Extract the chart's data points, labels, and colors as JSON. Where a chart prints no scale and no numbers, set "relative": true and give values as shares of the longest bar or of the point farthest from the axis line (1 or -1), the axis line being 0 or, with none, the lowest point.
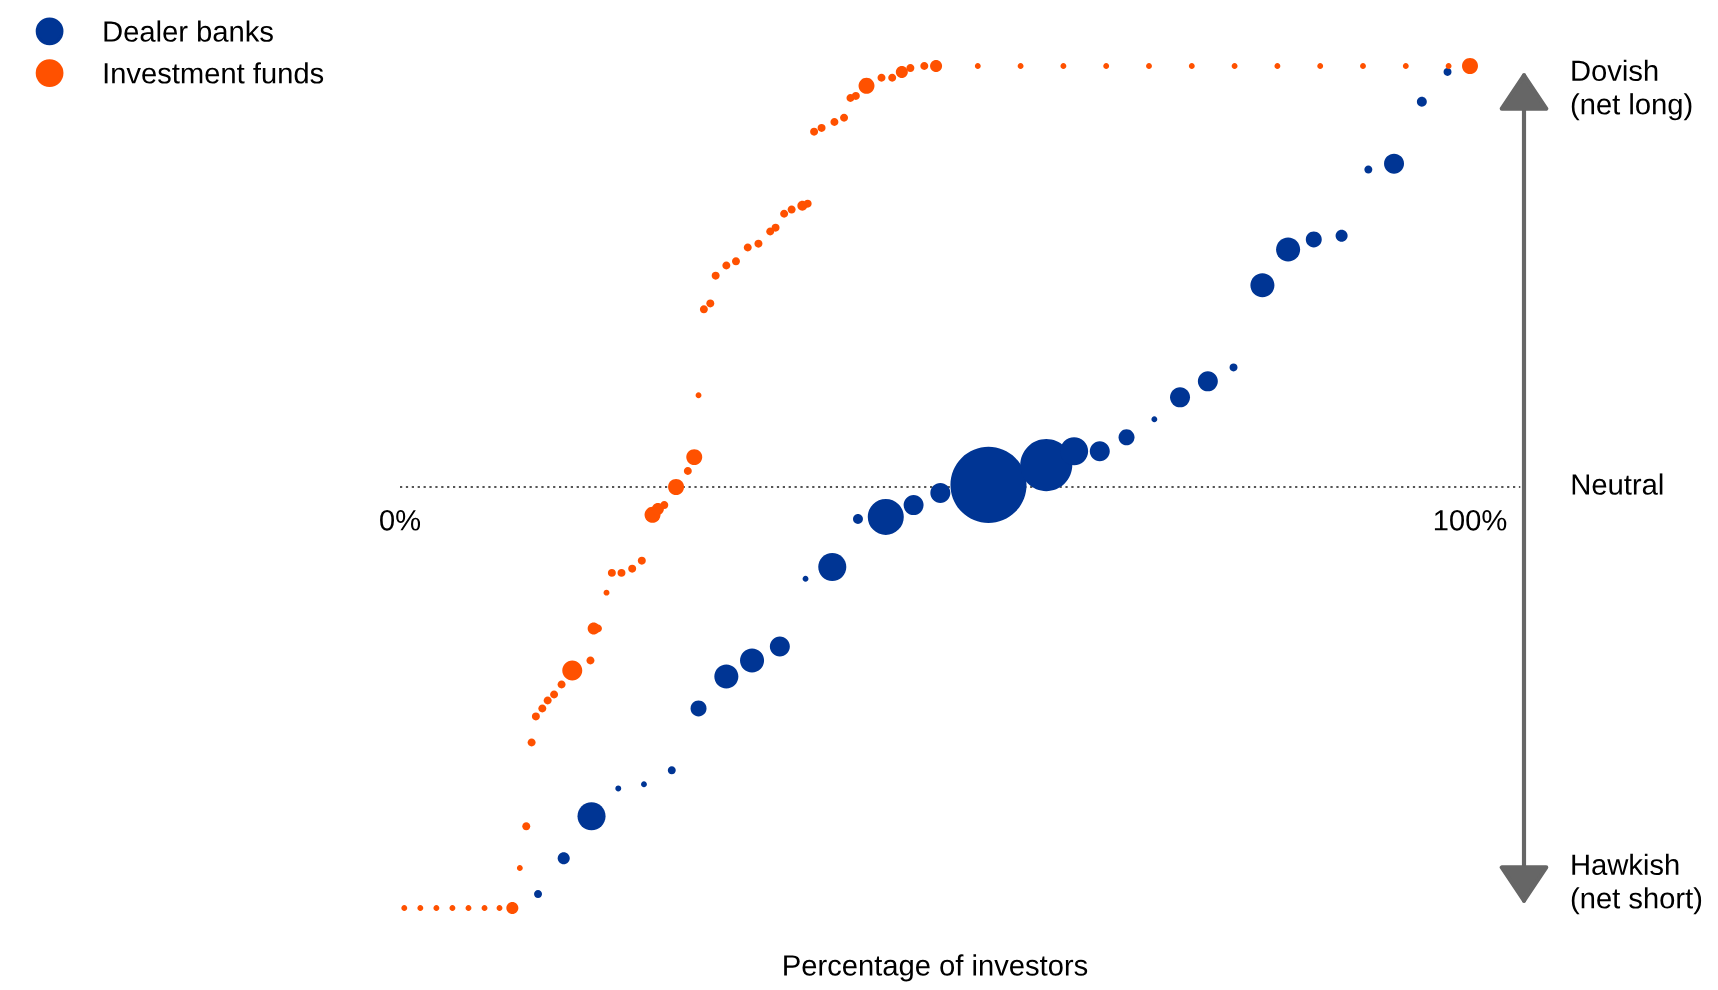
{
  "chart_data": {
    "type": "bubble",
    "relative": true,
    "xlabel": "Percentage of investors",
    "xlim": [
      0,
      100
    ],
    "xticks": [
      {
        "value": 0,
        "label": "0%"
      },
      {
        "value": 100,
        "label": "100%"
      }
    ],
    "legend": "top left",
    "marker": "circle",
    "grid": false,
    "ref_lines": [
      {
        "axis": "y",
        "value": 0,
        "label": "Neutral",
        "color": "#555555",
        "line_style": "dotted"
      }
    ],
    "annotations": [
      "Dovish\n(net long)",
      "Hawkish\n(net short)"
    ],
    "series": [
      {
        "name": "Dealer banks",
        "color": "#003594",
        "x": [
          12.9,
          15.3,
          17.9,
          20.4,
          22.8,
          25.4,
          27.9,
          30.5,
          32.9,
          35.5,
          37.9,
          40.4,
          42.8,
          45.4,
          48.0,
          50.5,
          55.0,
          60.4,
          63.0,
          65.4,
          67.9,
          70.5,
          72.9,
          75.5,
          77.9,
          80.6,
          83.0,
          85.4,
          88.0,
          90.5,
          92.9,
          95.5,
          97.9
        ],
        "values": [
          -0.967,
          -0.882,
          -0.782,
          -0.716,
          -0.706,
          -0.673,
          -0.526,
          -0.45,
          -0.412,
          -0.379,
          -0.218,
          -0.19,
          -0.076,
          -0.071,
          -0.043,
          -0.014,
          0.005,
          0.052,
          0.085,
          0.085,
          0.118,
          0.161,
          0.213,
          0.251,
          0.284,
          0.479,
          0.564,
          0.588,
          0.597,
          0.754,
          0.768,
          0.915,
          0.986
        ],
        "sizes": [
          0.011,
          0.025,
          0.136,
          0.006,
          0.006,
          0.011,
          0.044,
          0.1,
          0.1,
          0.069,
          0.006,
          0.136,
          0.017,
          0.224,
          0.069,
          0.069,
          1,
          0.468,
          0.136,
          0.069,
          0.044,
          0.006,
          0.069,
          0.069,
          0.011,
          0.1,
          0.1,
          0.044,
          0.025,
          0.011,
          0.069,
          0.017,
          0.011
        ]
      },
      {
        "name": "Investment funds",
        "color": "#ff5100",
        "x": [
          0.4,
          1.9,
          3.4,
          4.9,
          6.4,
          7.9,
          9.3,
          10.5,
          11.2,
          11.8,
          12.3,
          12.7,
          13.3,
          13.8,
          14.4,
          15.1,
          16.1,
          17.8,
          18.1,
          18.5,
          19.3,
          19.8,
          20.7,
          21.7,
          22.6,
          23.6,
          24.1,
          24.7,
          25.8,
          26.9,
          27.5,
          27.9,
          28.4,
          29.0,
          29.5,
          30.5,
          31.4,
          32.5,
          33.5,
          34.6,
          35.1,
          35.9,
          36.6,
          37.6,
          38.1,
          38.7,
          39.4,
          40.6,
          41.5,
          42.1,
          42.6,
          43.6,
          45.0,
          46.0,
          46.9,
          47.7,
          49.0,
          50.1,
          54,
          58,
          62,
          66,
          70,
          74,
          78,
          82,
          86,
          90,
          94,
          98,
          100
        ],
        "values": [
          -1,
          -1,
          -1,
          -1,
          -1,
          -1,
          -1,
          -1,
          -0.905,
          -0.806,
          -0.607,
          -0.545,
          -0.526,
          -0.507,
          -0.493,
          -0.469,
          -0.436,
          -0.412,
          -0.336,
          -0.336,
          -0.251,
          -0.204,
          -0.204,
          -0.194,
          -0.175,
          -0.066,
          -0.052,
          -0.043,
          0,
          0.038,
          0.071,
          0.218,
          0.422,
          0.436,
          0.502,
          0.526,
          0.536,
          0.569,
          0.578,
          0.607,
          0.616,
          0.649,
          0.659,
          0.668,
          0.673,
          0.844,
          0.853,
          0.867,
          0.877,
          0.924,
          0.929,
          0.953,
          0.972,
          0.972,
          0.986,
          0.995,
          1,
          1,
          1,
          1,
          1,
          1,
          1,
          1,
          1,
          1,
          1,
          1,
          1,
          1,
          1
        ],
        "sizes": [
          0.006,
          0.006,
          0.006,
          0.006,
          0.006,
          0.006,
          0.006,
          0.025,
          0.006,
          0.011,
          0.011,
          0.011,
          0.011,
          0.011,
          0.011,
          0.011,
          0.069,
          0.011,
          0.025,
          0.011,
          0.006,
          0.011,
          0.011,
          0.011,
          0.011,
          0.044,
          0.025,
          0.011,
          0.044,
          0.011,
          0.044,
          0.006,
          0.011,
          0.011,
          0.011,
          0.011,
          0.011,
          0.011,
          0.011,
          0.011,
          0.011,
          0.011,
          0.011,
          0.017,
          0.011,
          0.011,
          0.011,
          0.011,
          0.011,
          0.011,
          0.011,
          0.044,
          0.011,
          0.011,
          0.025,
          0.011,
          0.011,
          0.025,
          0.006,
          0.006,
          0.006,
          0.006,
          0.006,
          0.006,
          0.006,
          0.006,
          0.006,
          0.006,
          0.006,
          0.006,
          0.044
        ]
      }
    ]
  }
}
